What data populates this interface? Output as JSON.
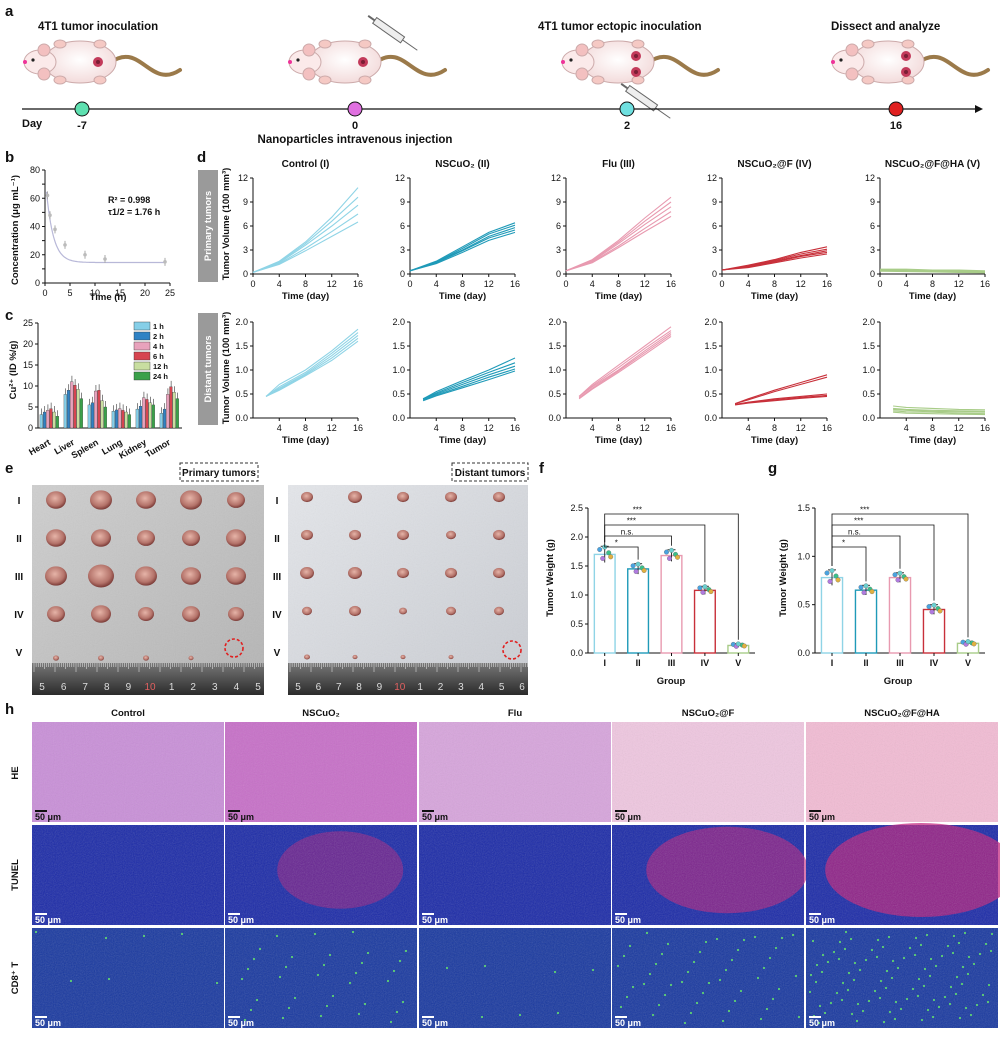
{
  "panel_labels": [
    "a",
    "b",
    "c",
    "d",
    "e",
    "f",
    "g",
    "h"
  ],
  "timeline": {
    "day_label": "Day",
    "events": [
      {
        "day": "-7",
        "title": "4T1 tumor inoculation",
        "dot_color": "#5ee0b0"
      },
      {
        "day": "0",
        "title": "",
        "dot_color": "#e070e0"
      },
      {
        "day": "2",
        "title": "4T1 tumor ectopic inoculation",
        "dot_color": "#6fe0e0"
      },
      {
        "day": "16",
        "title": "Dissect and analyze",
        "dot_color": "#e02020"
      }
    ],
    "injection_label": "Nanoparticles intravenous injection"
  },
  "panel_b": {
    "chart_data": {
      "type": "scatter",
      "xlabel": "Time (h)",
      "ylabel": "Concentration (μg mL⁻¹)",
      "xlim": [
        0,
        25
      ],
      "ylim": [
        0,
        80
      ],
      "x": [
        0.5,
        1,
        2,
        4,
        8,
        12,
        24
      ],
      "y": [
        62,
        48,
        38,
        27,
        20,
        17,
        15
      ],
      "xticks": [
        "0",
        "5",
        "10",
        "15",
        "20",
        "25"
      ],
      "yticks": [
        "0",
        "10",
        "20",
        "30",
        "40",
        "50",
        "60",
        "70",
        "80"
      ]
    },
    "r2": "R² = 0.998",
    "half_life": "τ1/2 = 1.76 h"
  },
  "panel_c": {
    "chart_data": {
      "type": "bar",
      "ylabel": "Cu²⁺ (ID %/g)",
      "ylim": [
        0,
        25
      ],
      "yticks": [
        "0",
        "5",
        "10",
        "15",
        "20",
        "25"
      ],
      "categories": [
        "Heart",
        "Liver",
        "Spleen",
        "Lung",
        "Kidney",
        "Tumor"
      ],
      "series": [
        {
          "name": "1 h",
          "color": "#86cfe8",
          "values": [
            3.2,
            8.0,
            5.5,
            4.0,
            4.5,
            3.5
          ]
        },
        {
          "name": "2 h",
          "color": "#2f82c4",
          "values": [
            3.8,
            9.0,
            6.0,
            4.3,
            5.2,
            4.5
          ]
        },
        {
          "name": "4 h",
          "color": "#e8a2bc",
          "values": [
            4.2,
            11.0,
            8.8,
            4.6,
            7.2,
            8.0
          ]
        },
        {
          "name": "6 h",
          "color": "#d64550",
          "values": [
            4.6,
            10.2,
            9.0,
            4.2,
            6.8,
            9.8
          ]
        },
        {
          "name": "12 h",
          "color": "#c8dea0",
          "values": [
            3.8,
            9.2,
            6.5,
            3.8,
            6.0,
            8.5
          ]
        },
        {
          "name": "24 h",
          "color": "#3aa04a",
          "values": [
            2.8,
            7.0,
            5.0,
            3.2,
            5.5,
            7.0
          ]
        }
      ]
    }
  },
  "panel_d": {
    "chart_data": [
      {
        "type": "line",
        "title": "Control (I)",
        "row": "Primary tumors",
        "color": "#8fd4e6",
        "ylim": [
          0,
          12
        ],
        "xlim": [
          0,
          16
        ],
        "x": [
          0,
          4,
          8,
          12,
          16
        ],
        "series": [
          [
            0.2,
            1.6,
            4.0,
            7.1,
            10.8
          ],
          [
            0.2,
            1.5,
            3.8,
            6.6,
            9.6
          ],
          [
            0.2,
            1.4,
            3.6,
            6.0,
            8.6
          ],
          [
            0.2,
            1.3,
            3.2,
            5.3,
            7.5
          ],
          [
            0.2,
            1.2,
            2.9,
            4.7,
            6.5
          ]
        ]
      },
      {
        "type": "line",
        "title": "NSCuO₂ (II)",
        "row": "Primary tumors",
        "color": "#1f9ab8",
        "ylim": [
          0,
          12
        ],
        "xlim": [
          0,
          16
        ],
        "x": [
          0,
          4,
          8,
          12,
          16
        ],
        "series": [
          [
            0.4,
            1.6,
            3.4,
            5.2,
            6.4
          ],
          [
            0.4,
            1.5,
            3.2,
            5.0,
            6.1
          ],
          [
            0.4,
            1.5,
            3.0,
            4.7,
            5.8
          ],
          [
            0.4,
            1.4,
            2.9,
            4.5,
            5.5
          ],
          [
            0.4,
            1.3,
            2.7,
            4.2,
            5.2
          ]
        ]
      },
      {
        "type": "line",
        "title": "Flu (III)",
        "row": "Primary tumors",
        "color": "#e89ab0",
        "ylim": [
          0,
          12
        ],
        "xlim": [
          0,
          16
        ],
        "x": [
          0,
          4,
          8,
          12,
          16
        ],
        "series": [
          [
            0.4,
            1.8,
            4.2,
            7.0,
            9.6
          ],
          [
            0.4,
            1.7,
            4.0,
            6.6,
            9.0
          ],
          [
            0.4,
            1.6,
            3.8,
            6.2,
            8.4
          ],
          [
            0.4,
            1.5,
            3.5,
            5.7,
            7.8
          ],
          [
            0.4,
            1.4,
            3.3,
            5.3,
            7.2
          ]
        ]
      },
      {
        "type": "line",
        "title": "NSCuO₂@F  (IV)",
        "row": "Primary tumors",
        "color": "#c8303a",
        "ylim": [
          0,
          12
        ],
        "xlim": [
          0,
          16
        ],
        "x": [
          0,
          4,
          8,
          12,
          16
        ],
        "series": [
          [
            0.5,
            1.1,
            1.8,
            2.7,
            3.4
          ],
          [
            0.5,
            1.0,
            1.7,
            2.5,
            3.1
          ],
          [
            0.5,
            0.9,
            1.6,
            2.3,
            2.9
          ],
          [
            0.5,
            0.9,
            1.5,
            2.2,
            2.7
          ],
          [
            0.5,
            0.8,
            1.4,
            2.0,
            2.5
          ]
        ]
      },
      {
        "type": "line",
        "title": "NSCuO₂@F@HA (V)",
        "row": "Primary tumors",
        "color": "#a8cc88",
        "ylim": [
          0,
          12
        ],
        "xlim": [
          0,
          16
        ],
        "x": [
          0,
          4,
          8,
          12,
          16
        ],
        "series": [
          [
            0.6,
            0.6,
            0.5,
            0.5,
            0.4
          ],
          [
            0.5,
            0.5,
            0.4,
            0.4,
            0.35
          ],
          [
            0.45,
            0.4,
            0.35,
            0.3,
            0.3
          ],
          [
            0.4,
            0.35,
            0.3,
            0.25,
            0.2
          ],
          [
            0.35,
            0.3,
            0.25,
            0.2,
            0.15
          ]
        ]
      },
      {
        "type": "line",
        "row": "Distant tumors",
        "color": "#8fd4e6",
        "ylim": [
          0,
          2.0
        ],
        "xlim": [
          2,
          16
        ],
        "x": [
          2,
          4,
          8,
          12,
          16
        ],
        "series": [
          [
            0.45,
            0.7,
            1.0,
            1.4,
            1.85
          ],
          [
            0.45,
            0.65,
            0.95,
            1.35,
            1.78
          ],
          [
            0.45,
            0.62,
            0.92,
            1.3,
            1.72
          ],
          [
            0.45,
            0.6,
            0.9,
            1.25,
            1.66
          ],
          [
            0.45,
            0.58,
            0.88,
            1.2,
            1.6
          ]
        ]
      },
      {
        "type": "line",
        "row": "Distant tumors",
        "color": "#1f9ab8",
        "ylim": [
          0,
          2.0
        ],
        "xlim": [
          2,
          16
        ],
        "x": [
          2,
          4,
          8,
          12,
          16
        ],
        "series": [
          [
            0.4,
            0.55,
            0.78,
            1.0,
            1.25
          ],
          [
            0.4,
            0.52,
            0.74,
            0.95,
            1.15
          ],
          [
            0.4,
            0.5,
            0.7,
            0.9,
            1.08
          ],
          [
            0.38,
            0.48,
            0.66,
            0.85,
            1.02
          ],
          [
            0.36,
            0.46,
            0.63,
            0.8,
            0.98
          ]
        ]
      },
      {
        "type": "line",
        "row": "Distant tumors",
        "color": "#e89ab0",
        "ylim": [
          0,
          2.0
        ],
        "xlim": [
          2,
          16
        ],
        "x": [
          2,
          4,
          8,
          12,
          16
        ],
        "series": [
          [
            0.45,
            0.7,
            1.1,
            1.5,
            1.9
          ],
          [
            0.45,
            0.67,
            1.05,
            1.45,
            1.82
          ],
          [
            0.45,
            0.65,
            1.0,
            1.4,
            1.78
          ],
          [
            0.42,
            0.62,
            0.98,
            1.36,
            1.74
          ],
          [
            0.4,
            0.6,
            0.95,
            1.32,
            1.7
          ]
        ]
      },
      {
        "type": "line",
        "row": "Distant tumors",
        "color": "#c8303a",
        "ylim": [
          0,
          2.0
        ],
        "xlim": [
          2,
          16
        ],
        "x": [
          2,
          4,
          8,
          12,
          16
        ],
        "series": [
          [
            0.3,
            0.4,
            0.58,
            0.74,
            0.9
          ],
          [
            0.3,
            0.38,
            0.55,
            0.7,
            0.85
          ],
          [
            0.28,
            0.33,
            0.4,
            0.45,
            0.5
          ],
          [
            0.28,
            0.32,
            0.38,
            0.43,
            0.47
          ],
          [
            0.27,
            0.31,
            0.36,
            0.41,
            0.45
          ]
        ]
      },
      {
        "type": "line",
        "row": "Distant tumors",
        "color": "#a8cc88",
        "ylim": [
          0,
          2.0
        ],
        "xlim": [
          2,
          16
        ],
        "x": [
          2,
          4,
          8,
          12,
          16
        ],
        "series": [
          [
            0.25,
            0.22,
            0.2,
            0.18,
            0.17
          ],
          [
            0.2,
            0.18,
            0.16,
            0.15,
            0.14
          ],
          [
            0.18,
            0.16,
            0.14,
            0.13,
            0.12
          ],
          [
            0.15,
            0.13,
            0.12,
            0.1,
            0.09
          ],
          [
            0.12,
            0.1,
            0.09,
            0.08,
            0.07
          ]
        ]
      }
    ],
    "row_labels": [
      "Primary tumors",
      "Distant tumors"
    ],
    "xlabel": "Time (day)",
    "ylabel_primary": "Tumor Volume (100 mm³)",
    "ylabel_distant": "Tumor Volume (100 mm³)"
  },
  "panel_e": {
    "left_title": "Primary tumors",
    "right_title": "Distant tumors",
    "row_labels": [
      "I",
      "II",
      "III",
      "IV",
      "V"
    ],
    "ruler_numbers_left": [
      "5",
      "6",
      "7",
      "8",
      "9",
      "10",
      "1",
      "2",
      "3",
      "4",
      "5"
    ],
    "ruler_numbers_right": [
      "5",
      "6",
      "7",
      "8",
      "9",
      "10",
      "1",
      "2",
      "3",
      "4",
      "5",
      "6"
    ]
  },
  "panel_f": {
    "chart_data": {
      "type": "bar",
      "xlabel": "Group",
      "ylabel": "Tumor Weight (g)",
      "ylim": [
        0,
        2.5
      ],
      "yticks": [
        "0.0",
        "0.5",
        "1.0",
        "1.5",
        "2.0",
        "2.5"
      ],
      "categories": [
        "I",
        "II",
        "III",
        "IV",
        "V"
      ],
      "values": [
        1.7,
        1.45,
        1.68,
        1.08,
        0.13
      ],
      "errors": [
        0.14,
        0.09,
        0.1,
        0.07,
        0.03
      ],
      "colors": [
        "#8fd4e6",
        "#1f9ab8",
        "#e89ab0",
        "#c8303a",
        "#a8cc88"
      ],
      "significance": [
        "*",
        "n.s.",
        "***",
        "***"
      ]
    }
  },
  "panel_g": {
    "chart_data": {
      "type": "bar",
      "xlabel": "Group",
      "ylabel": "Tumor Weight (g)",
      "ylim": [
        0,
        1.5
      ],
      "yticks": [
        "0.0",
        "0.5",
        "1.0",
        "1.5"
      ],
      "categories": [
        "I",
        "II",
        "III",
        "IV",
        "V"
      ],
      "values": [
        0.78,
        0.65,
        0.78,
        0.45,
        0.1
      ],
      "errors": [
        0.08,
        0.05,
        0.05,
        0.05,
        0.02
      ],
      "colors": [
        "#8fd4e6",
        "#1f9ab8",
        "#e89ab0",
        "#c8303a",
        "#a8cc88"
      ],
      "significance": [
        "*",
        "n.s.",
        "***",
        "***"
      ]
    }
  },
  "panel_h": {
    "columns": [
      "Control",
      "NSCuO₂",
      "Flu",
      "NSCuO₂@F",
      "NSCuO₂@F@HA"
    ],
    "rows": [
      "HE",
      "TUNEL",
      "CD8⁺ T"
    ],
    "scale_bar": "50 μm"
  }
}
